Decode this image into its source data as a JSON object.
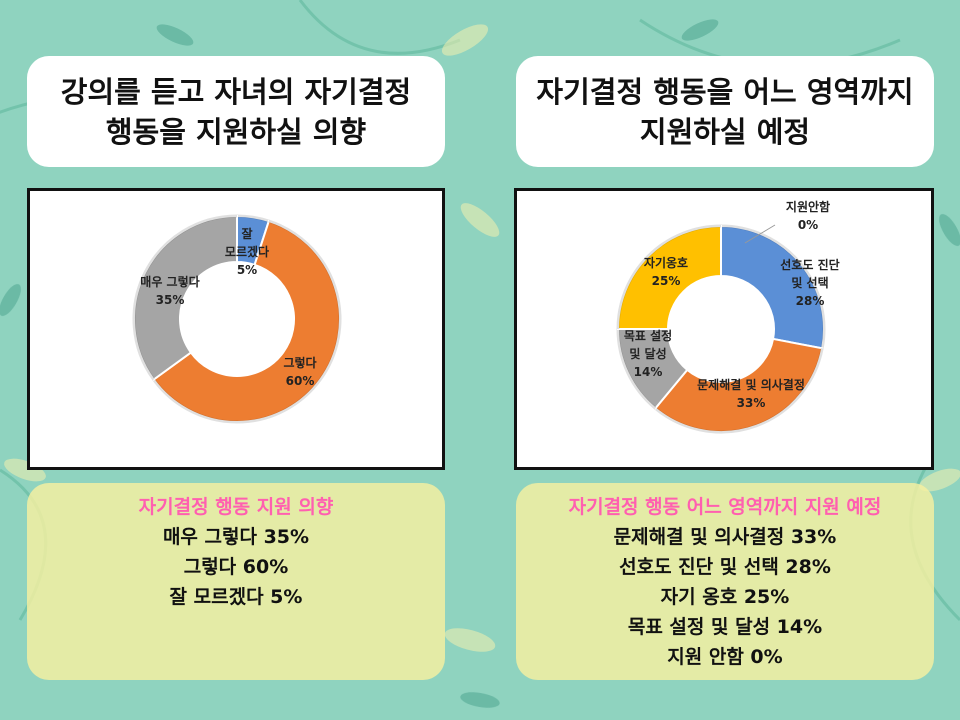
{
  "colors": {
    "blue": "#5b8fd6",
    "orange": "#ed7d31",
    "gray": "#a5a5a5",
    "yellow": "#ffc000",
    "pink": "#ff5fb0"
  },
  "left": {
    "title": "강의를 듣고 자녀의 자기결정\n행동을 지원하실 의향",
    "summary": {
      "heading": "자기결정 행동 지원 의향",
      "lines": [
        "매우 그렇다 35%",
        "그렇다 60%",
        "잘 모르겠다 5%"
      ]
    }
  },
  "right": {
    "title": "자기결정 행동을 어느 영역까지\n지원하실 예정",
    "summary": {
      "heading": "자기결정 행동 어느 영역까지 지원 예정",
      "lines": [
        "문제해결 및 의사결정 33%",
        "선호도 진단 및 선택 28%",
        "자기 옹호 25%",
        "목표 설정 및 달성 14%",
        "지원 안함 0%"
      ]
    }
  },
  "chart_data": [
    {
      "type": "pie",
      "title": "",
      "slices": [
        {
          "label": "잘 모르겠다",
          "value": 5,
          "display": [
            "잘",
            "모르겠다",
            "5%"
          ],
          "color": "#5b8fd6"
        },
        {
          "label": "그렇다",
          "value": 60,
          "display": [
            "그렇다",
            "60%"
          ],
          "color": "#ed7d31"
        },
        {
          "label": "매우 그렇다",
          "value": 35,
          "display": [
            "매우 그렇다",
            "35%"
          ],
          "color": "#a5a5a5"
        }
      ]
    },
    {
      "type": "pie",
      "title": "",
      "slices": [
        {
          "label": "지원안함",
          "value": 0,
          "display": [
            "지원안함",
            "0%"
          ],
          "color": "#5b8fd6"
        },
        {
          "label": "선호도 진단 및 선택",
          "value": 28,
          "display": [
            "선호도 진단",
            "및 선택",
            "28%"
          ],
          "color": "#5b8fd6"
        },
        {
          "label": "문제해결 및 의사결정",
          "value": 33,
          "display": [
            "문제해결 및 의사결정",
            "33%"
          ],
          "color": "#ed7d31"
        },
        {
          "label": "목표 설정 및 달성",
          "value": 14,
          "display": [
            "목표 설정",
            "및 달성",
            "14%"
          ],
          "color": "#a5a5a5"
        },
        {
          "label": "자기옹호",
          "value": 25,
          "display": [
            "자기옹호",
            "25%"
          ],
          "color": "#ffc000"
        }
      ]
    }
  ]
}
